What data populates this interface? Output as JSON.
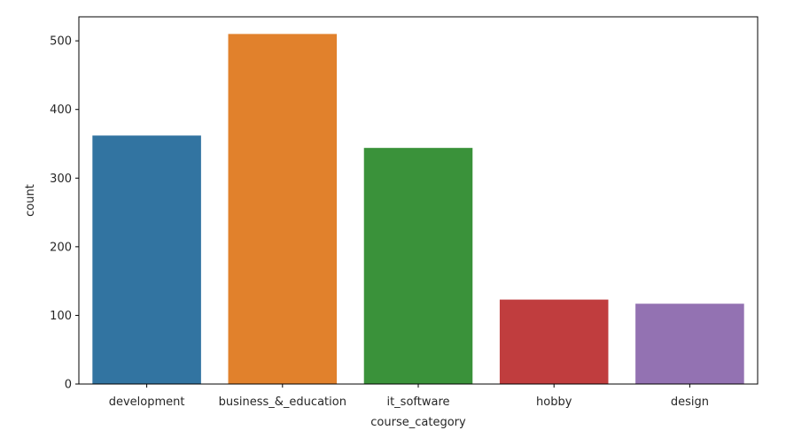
{
  "chart_data": {
    "type": "bar",
    "categories": [
      "development",
      "business_&_education",
      "it_software",
      "hobby",
      "design"
    ],
    "values": [
      362,
      510,
      344,
      123,
      117
    ],
    "colors": [
      "#3274a1",
      "#e1812c",
      "#3a923a",
      "#c03d3e",
      "#9372b2"
    ],
    "xlabel": "course_category",
    "ylabel": "count",
    "ylim": [
      0,
      535
    ],
    "yticks": [
      0,
      100,
      200,
      300,
      400,
      500
    ],
    "grid": false
  }
}
